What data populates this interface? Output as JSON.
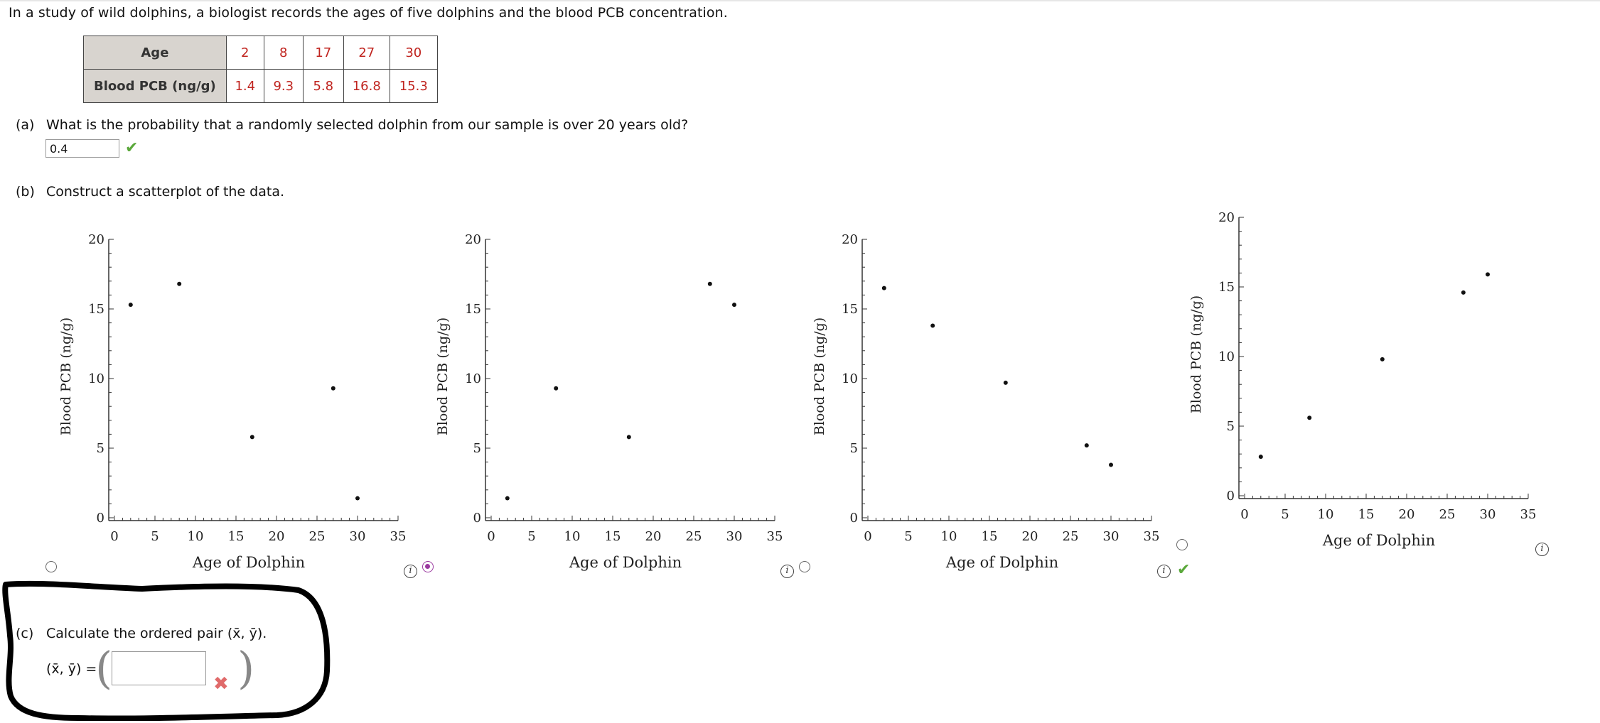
{
  "intro": "In a study of wild dolphins, a biologist records the ages of five dolphins and the blood PCB concentration.",
  "table": {
    "row1_header": "Age",
    "row2_header": "Blood PCB (ng/g)",
    "ages": [
      "2",
      "8",
      "17",
      "27",
      "30"
    ],
    "pcb": [
      "1.4",
      "9.3",
      "5.8",
      "16.8",
      "15.3"
    ]
  },
  "part_a": {
    "label": "(a)",
    "question": "What is the probability that a randomly selected dolphin from our sample is over 20 years old?",
    "answer": "0.4",
    "status_icon": "green-check-icon"
  },
  "part_b": {
    "label": "(b)",
    "question": "Construct a scatterplot of the data.",
    "selected_option": 2,
    "correct_option": 4
  },
  "part_c": {
    "label": "(c)",
    "question": "Calculate the ordered pair (x̄, ȳ).",
    "lhs": "(x̄, ȳ) =",
    "answer": "",
    "status_icon": "red-x-icon"
  },
  "colors": {
    "table_value": "#c0241f",
    "header_bg": "#d8d4cf",
    "correct": "#5aa83a",
    "wrong": "#e06a6a",
    "radio_selected": "#9b3aa0"
  },
  "chart_data": [
    {
      "type": "scatter",
      "xlabel": "Age of Dolphin",
      "ylabel": "Blood PCB (ng/g)",
      "xlim": [
        0,
        35
      ],
      "ylim": [
        0,
        20
      ],
      "xticks": [
        "0",
        "5",
        "10",
        "15",
        "20",
        "25",
        "30",
        "35"
      ],
      "yticks": [
        "0",
        "5",
        "10",
        "15",
        "20"
      ],
      "points": [
        [
          2,
          15.3
        ],
        [
          8,
          16.8
        ],
        [
          17,
          5.8
        ],
        [
          27,
          9.3
        ],
        [
          30,
          1.4
        ]
      ]
    },
    {
      "type": "scatter",
      "xlabel": "Age of Dolphin",
      "ylabel": "Blood PCB (ng/g)",
      "xlim": [
        0,
        35
      ],
      "ylim": [
        0,
        20
      ],
      "xticks": [
        "0",
        "5",
        "10",
        "15",
        "20",
        "25",
        "30",
        "35"
      ],
      "yticks": [
        "0",
        "5",
        "10",
        "15",
        "20"
      ],
      "points": [
        [
          2,
          1.4
        ],
        [
          8,
          9.3
        ],
        [
          17,
          5.8
        ],
        [
          27,
          16.8
        ],
        [
          30,
          15.3
        ]
      ]
    },
    {
      "type": "scatter",
      "xlabel": "Age of Dolphin",
      "ylabel": "Blood PCB (ng/g)",
      "xlim": [
        0,
        35
      ],
      "ylim": [
        0,
        20
      ],
      "xticks": [
        "0",
        "5",
        "10",
        "15",
        "20",
        "25",
        "30",
        "35"
      ],
      "yticks": [
        "0",
        "5",
        "10",
        "15",
        "20"
      ],
      "points": [
        [
          2,
          16.5
        ],
        [
          8,
          13.8
        ],
        [
          17,
          9.7
        ],
        [
          27,
          5.2
        ],
        [
          30,
          3.8
        ]
      ]
    },
    {
      "type": "scatter",
      "xlabel": "Age of Dolphin",
      "ylabel": "Blood PCB (ng/g)",
      "xlim": [
        0,
        35
      ],
      "ylim": [
        0,
        20
      ],
      "xticks": [
        "0",
        "5",
        "10",
        "15",
        "20",
        "25",
        "30",
        "35"
      ],
      "yticks": [
        "0",
        "5",
        "10",
        "15",
        "20"
      ],
      "points": [
        [
          2,
          2.8
        ],
        [
          8,
          5.6
        ],
        [
          17,
          9.8
        ],
        [
          27,
          14.6
        ],
        [
          30,
          15.9
        ]
      ]
    }
  ]
}
